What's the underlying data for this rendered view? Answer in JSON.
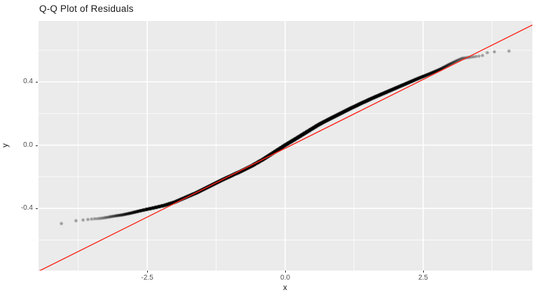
{
  "title": "Q-Q Plot of Residuals",
  "chart_data": {
    "type": "scatter",
    "subtype": "qq-plot",
    "title": "Q-Q Plot of Residuals",
    "xlabel": "x",
    "ylabel": "y",
    "xlim": [
      -4.47,
      4.48
    ],
    "ylim": [
      -0.793,
      0.785
    ],
    "x_ticks": {
      "values": [
        -2.5,
        0.0,
        2.5
      ],
      "labels": [
        "-2.5",
        "0.0",
        "2.5"
      ],
      "minor": [
        -3.75,
        -1.25,
        1.25,
        3.75
      ]
    },
    "y_ticks": {
      "values": [
        -0.4,
        0.0,
        0.4
      ],
      "labels": [
        "-0.4",
        "0.0",
        "0.4"
      ],
      "minor": [
        -0.6,
        -0.2,
        0.2,
        0.6
      ]
    },
    "grid": true,
    "legend": "none",
    "n_points": 20000,
    "point_radius": 2.2,
    "point_color_rgba": [
      0,
      0,
      0,
      0.35
    ],
    "reference_line": {
      "slope": 0.174,
      "intercept": -0.02,
      "color": "#F8261B",
      "width": 1.4
    },
    "qq_curve": [
      [
        -4.09,
        -0.498
      ],
      [
        -3.83,
        -0.48
      ],
      [
        -3.71,
        -0.475
      ],
      [
        -3.6,
        -0.471
      ],
      [
        -3.49,
        -0.467
      ],
      [
        -3.4,
        -0.465
      ],
      [
        -3.32,
        -0.462
      ],
      [
        -3.2,
        -0.455
      ],
      [
        -3.07,
        -0.447
      ],
      [
        -2.95,
        -0.441
      ],
      [
        -2.8,
        -0.43
      ],
      [
        -2.6,
        -0.413
      ],
      [
        -2.4,
        -0.398
      ],
      [
        -2.2,
        -0.382
      ],
      [
        -2.0,
        -0.36
      ],
      [
        -1.8,
        -0.33
      ],
      [
        -1.6,
        -0.3
      ],
      [
        -1.4,
        -0.265
      ],
      [
        -1.2,
        -0.23
      ],
      [
        -1.0,
        -0.197
      ],
      [
        -0.8,
        -0.165
      ],
      [
        -0.6,
        -0.13
      ],
      [
        -0.4,
        -0.09
      ],
      [
        -0.2,
        -0.045
      ],
      [
        0.0,
        0.0
      ],
      [
        0.2,
        0.042
      ],
      [
        0.4,
        0.085
      ],
      [
        0.6,
        0.128
      ],
      [
        0.8,
        0.165
      ],
      [
        1.0,
        0.2
      ],
      [
        1.2,
        0.235
      ],
      [
        1.4,
        0.268
      ],
      [
        1.6,
        0.3
      ],
      [
        1.8,
        0.33
      ],
      [
        2.0,
        0.36
      ],
      [
        2.2,
        0.39
      ],
      [
        2.4,
        0.42
      ],
      [
        2.6,
        0.448
      ],
      [
        2.8,
        0.478
      ],
      [
        3.0,
        0.515
      ],
      [
        3.1,
        0.532
      ],
      [
        3.2,
        0.548
      ],
      [
        3.3,
        0.554
      ],
      [
        3.4,
        0.558
      ],
      [
        3.5,
        0.562
      ],
      [
        3.57,
        0.565
      ],
      [
        3.62,
        0.582
      ],
      [
        3.7,
        0.587
      ],
      [
        3.82,
        0.591
      ],
      [
        4.07,
        0.595
      ]
    ],
    "colors": {
      "figure_bg": "#FFFFFF",
      "panel_bg": "#EBEBEB",
      "grid_major": "#FFFFFF",
      "grid_minor": "#FFFFFF",
      "tick_mark": "#333333",
      "tick_label": "#4D4D4D",
      "axis_title": "#1A1A1A",
      "title": "#1A1A1A"
    }
  }
}
